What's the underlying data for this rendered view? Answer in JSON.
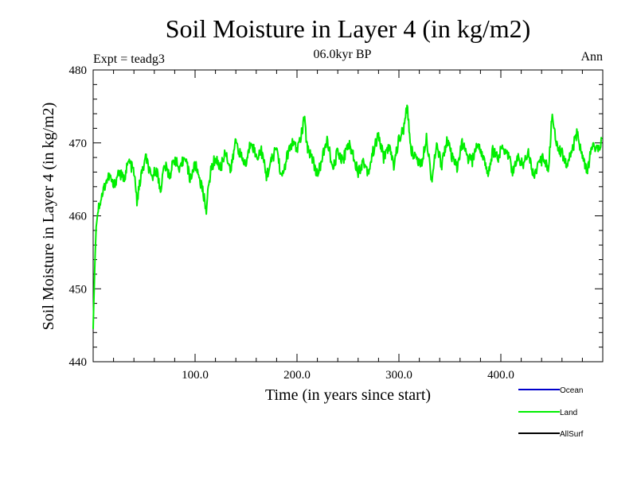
{
  "chart_data": {
    "type": "line",
    "title": "Soil Moisture in Layer 4 (in kg/m2)",
    "subtitle": "06.0kyr BP",
    "left_note": "Expt = teadg3",
    "right_note": "Ann",
    "xlabel": "Time (in years since start)",
    "ylabel": "Soil Moisture in Layer 4 (in kg/m2)",
    "xlim": [
      0,
      500
    ],
    "ylim": [
      440,
      480
    ],
    "x_ticks": [
      {
        "value": 100,
        "label": "100.0"
      },
      {
        "value": 200,
        "label": "200.0"
      },
      {
        "value": 300,
        "label": "300.0"
      },
      {
        "value": 400,
        "label": "400.0"
      }
    ],
    "y_ticks": [
      {
        "value": 440,
        "label": "440"
      },
      {
        "value": 450,
        "label": "450"
      },
      {
        "value": 460,
        "label": "460"
      },
      {
        "value": 470,
        "label": "470"
      },
      {
        "value": 480,
        "label": "480"
      }
    ],
    "legend_position": "bottom-right",
    "series": [
      {
        "name": "Ocean",
        "color": "#0000cc",
        "x": [],
        "values": []
      },
      {
        "name": "Land",
        "color": "#00ee00",
        "x": [
          0,
          1,
          2,
          3,
          5,
          8,
          12,
          16,
          20,
          25,
          30,
          35,
          40,
          43,
          47,
          52,
          57,
          62,
          66,
          70,
          75,
          80,
          85,
          90,
          95,
          100,
          104,
          108,
          111,
          115,
          120,
          125,
          130,
          135,
          140,
          145,
          150,
          155,
          160,
          165,
          170,
          175,
          180,
          185,
          190,
          195,
          200,
          205,
          207,
          210,
          215,
          220,
          225,
          230,
          235,
          240,
          245,
          250,
          255,
          260,
          265,
          270,
          275,
          280,
          285,
          290,
          295,
          300,
          305,
          308,
          312,
          317,
          322,
          327,
          332,
          337,
          342,
          347,
          352,
          357,
          362,
          367,
          372,
          377,
          382,
          387,
          392,
          397,
          402,
          407,
          412,
          417,
          422,
          427,
          432,
          437,
          442,
          447,
          450,
          455,
          460,
          465,
          470,
          475,
          480,
          485,
          490,
          495,
          499
        ],
        "values": [
          444.5,
          450,
          455,
          458.5,
          461,
          462.5,
          464.5,
          465.5,
          464,
          466,
          465,
          467.5,
          466,
          462,
          465.5,
          468,
          465,
          466.5,
          463.5,
          467,
          465.5,
          468,
          466,
          468.5,
          465,
          467,
          465.5,
          463,
          461,
          466,
          468,
          466.5,
          469,
          466,
          470.5,
          468,
          467,
          470.5,
          468,
          469,
          465.5,
          467.5,
          469.5,
          465,
          468,
          470,
          469,
          471.5,
          473.5,
          469.5,
          468,
          465.5,
          468,
          470.5,
          466,
          469,
          467.5,
          470,
          468.5,
          466,
          467.5,
          466,
          469,
          471,
          468,
          469.5,
          467,
          470.5,
          472,
          475,
          469,
          468,
          467,
          471,
          465,
          469.5,
          467,
          470.5,
          468,
          466.5,
          470,
          468,
          467.5,
          470,
          468.5,
          465.5,
          469,
          468,
          469.5,
          468.5,
          466,
          468,
          467,
          469,
          465.5,
          467,
          468,
          466.5,
          473.5,
          470,
          468.5,
          467,
          469,
          471.5,
          468,
          466,
          470,
          469,
          470.5
        ]
      },
      {
        "name": "AllSurf",
        "color": "#000000",
        "x": [],
        "values": []
      }
    ]
  }
}
